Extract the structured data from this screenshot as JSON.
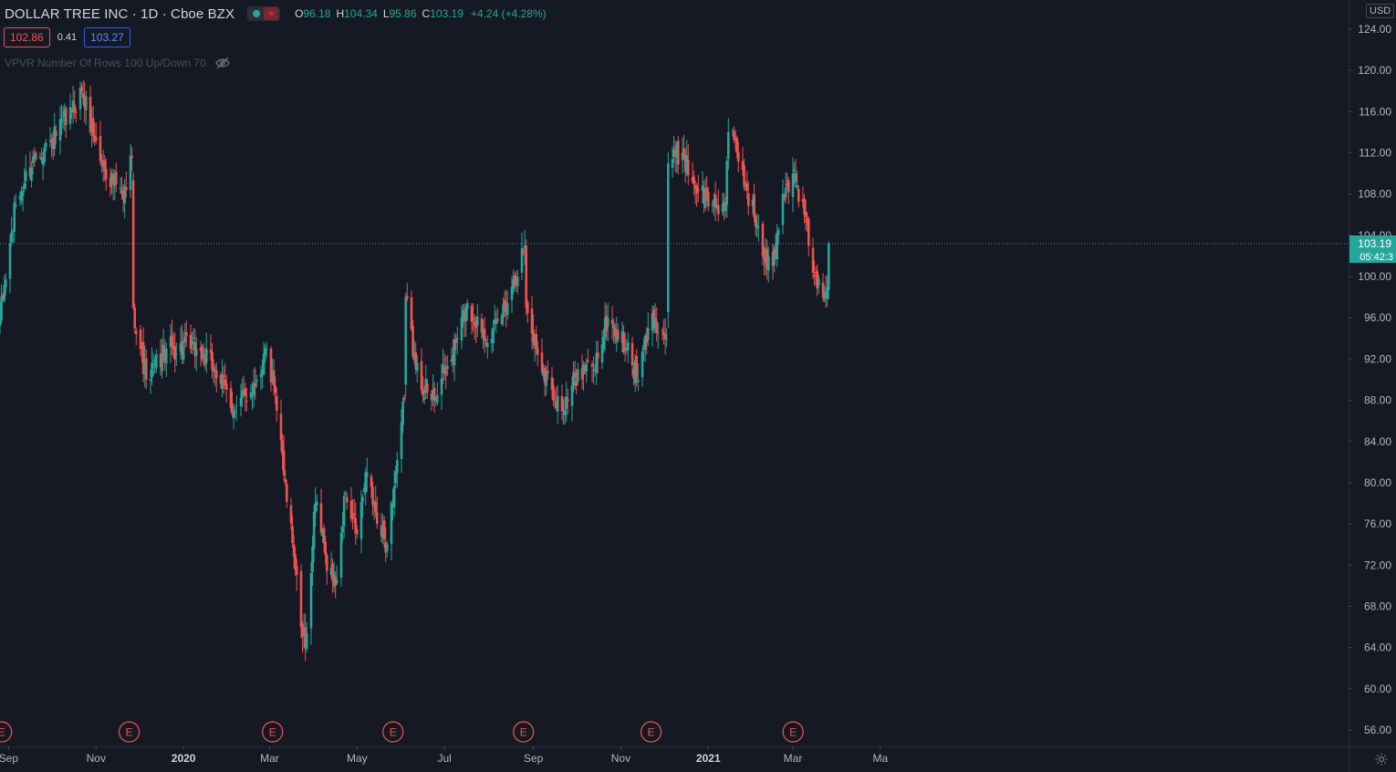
{
  "legend": {
    "symbol": "DOLLAR TREE INC · 1D · Cboe BZX",
    "open_label": "O",
    "open": "96.18",
    "high_label": "H",
    "high": "104.34",
    "low_label": "L",
    "low": "95.86",
    "close_label": "C",
    "close": "103.19",
    "change": "+4.24 (+4.28%)"
  },
  "quote": {
    "bid": "102.86",
    "spread": "0.41",
    "ask": "103.27"
  },
  "indicator": {
    "label": "VPVR Number Of Rows 100 Up/Down 70",
    "icon": "eye-slash-icon"
  },
  "currency": "USD",
  "last_price": {
    "price": "103.19",
    "countdown": "05:42:3"
  },
  "colors": {
    "background": "#151924",
    "up": "#26a69a",
    "down": "#ef5350",
    "grid_text": "#b2b5be",
    "earnings": "#ef5350"
  },
  "chart_data": {
    "type": "candlestick",
    "interval": "1D",
    "ylim": [
      54,
      126
    ],
    "yticks": [
      "124.00",
      "120.00",
      "116.00",
      "112.00",
      "108.00",
      "104.00",
      "100.00",
      "96.00",
      "92.00",
      "88.00",
      "84.00",
      "80.00",
      "76.00",
      "72.00",
      "68.00",
      "64.00",
      "60.00",
      "56.00"
    ],
    "xticks": [
      {
        "label": "Sep",
        "bold": false
      },
      {
        "label": "Nov",
        "bold": false
      },
      {
        "label": "2020",
        "bold": true
      },
      {
        "label": "Mar",
        "bold": false
      },
      {
        "label": "May",
        "bold": false
      },
      {
        "label": "Jul",
        "bold": false
      },
      {
        "label": "Sep",
        "bold": false
      },
      {
        "label": "Nov",
        "bold": false
      },
      {
        "label": "2021",
        "bold": true
      },
      {
        "label": "Mar",
        "bold": false
      },
      {
        "label": "Ma",
        "bold": false
      }
    ],
    "earnings_label": "E",
    "earnings_count": 7,
    "current_price": 103.19,
    "close_path": [
      {
        "date": "2019-08-26",
        "close": 96
      },
      {
        "date": "2019-09-06",
        "close": 107
      },
      {
        "date": "2019-09-20",
        "close": 112
      },
      {
        "date": "2019-10-01",
        "close": 113
      },
      {
        "date": "2019-10-15",
        "close": 116
      },
      {
        "date": "2019-10-22",
        "close": 118
      },
      {
        "date": "2019-11-05",
        "close": 111
      },
      {
        "date": "2019-11-20",
        "close": 107.5
      },
      {
        "date": "2019-11-26",
        "close": 111.5
      },
      {
        "date": "2019-11-27",
        "close": 97
      },
      {
        "date": "2019-12-06",
        "close": 90
      },
      {
        "date": "2019-12-20",
        "close": 93
      },
      {
        "date": "2020-01-10",
        "close": 93
      },
      {
        "date": "2020-01-23",
        "close": 91
      },
      {
        "date": "2020-02-06",
        "close": 87
      },
      {
        "date": "2020-02-21",
        "close": 90
      },
      {
        "date": "2020-02-28",
        "close": 93
      },
      {
        "date": "2020-03-06",
        "close": 87
      },
      {
        "date": "2020-03-12",
        "close": 80
      },
      {
        "date": "2020-03-16",
        "close": 76
      },
      {
        "date": "2020-03-23",
        "close": 66
      },
      {
        "date": "2020-03-26",
        "close": 64
      },
      {
        "date": "2020-04-02",
        "close": 78
      },
      {
        "date": "2020-04-09",
        "close": 73
      },
      {
        "date": "2020-04-16",
        "close": 70
      },
      {
        "date": "2020-04-23",
        "close": 79
      },
      {
        "date": "2020-05-01",
        "close": 75
      },
      {
        "date": "2020-05-08",
        "close": 81
      },
      {
        "date": "2020-05-15",
        "close": 76
      },
      {
        "date": "2020-05-22",
        "close": 74
      },
      {
        "date": "2020-05-28",
        "close": 81
      },
      {
        "date": "2020-06-03",
        "close": 88
      },
      {
        "date": "2020-06-04",
        "close": 98
      },
      {
        "date": "2020-06-11",
        "close": 91
      },
      {
        "date": "2020-06-22",
        "close": 88
      },
      {
        "date": "2020-07-06",
        "close": 92
      },
      {
        "date": "2020-07-16",
        "close": 97
      },
      {
        "date": "2020-08-03",
        "close": 94
      },
      {
        "date": "2020-08-17",
        "close": 99
      },
      {
        "date": "2020-08-26",
        "close": 103
      },
      {
        "date": "2020-08-27",
        "close": 97
      },
      {
        "date": "2020-09-03",
        "close": 93
      },
      {
        "date": "2020-09-14",
        "close": 89
      },
      {
        "date": "2020-09-23",
        "close": 87
      },
      {
        "date": "2020-10-02",
        "close": 91
      },
      {
        "date": "2020-10-13",
        "close": 91
      },
      {
        "date": "2020-10-23",
        "close": 96
      },
      {
        "date": "2020-11-05",
        "close": 93
      },
      {
        "date": "2020-11-13",
        "close": 90
      },
      {
        "date": "2020-11-20",
        "close": 95
      },
      {
        "date": "2020-11-25",
        "close": 96
      },
      {
        "date": "2020-12-03",
        "close": 94
      },
      {
        "date": "2020-12-04",
        "close": 111
      },
      {
        "date": "2020-12-14",
        "close": 112
      },
      {
        "date": "2020-12-22",
        "close": 109
      },
      {
        "date": "2021-01-04",
        "close": 107
      },
      {
        "date": "2021-01-13",
        "close": 107
      },
      {
        "date": "2021-01-15",
        "close": 114
      },
      {
        "date": "2021-01-21",
        "close": 112
      },
      {
        "date": "2021-02-04",
        "close": 105
      },
      {
        "date": "2021-02-08",
        "close": 102
      },
      {
        "date": "2021-02-15",
        "close": 101
      },
      {
        "date": "2021-02-22",
        "close": 108
      },
      {
        "date": "2021-03-01",
        "close": 110
      },
      {
        "date": "2021-03-09",
        "close": 106
      },
      {
        "date": "2021-03-16",
        "close": 100
      },
      {
        "date": "2021-03-22",
        "close": 98
      },
      {
        "date": "2021-03-25",
        "close": 98.95
      },
      {
        "date": "2021-03-26",
        "close": 103.19
      }
    ],
    "gaps": [
      "2019-11-27",
      "2020-06-04",
      "2020-12-04"
    ]
  }
}
